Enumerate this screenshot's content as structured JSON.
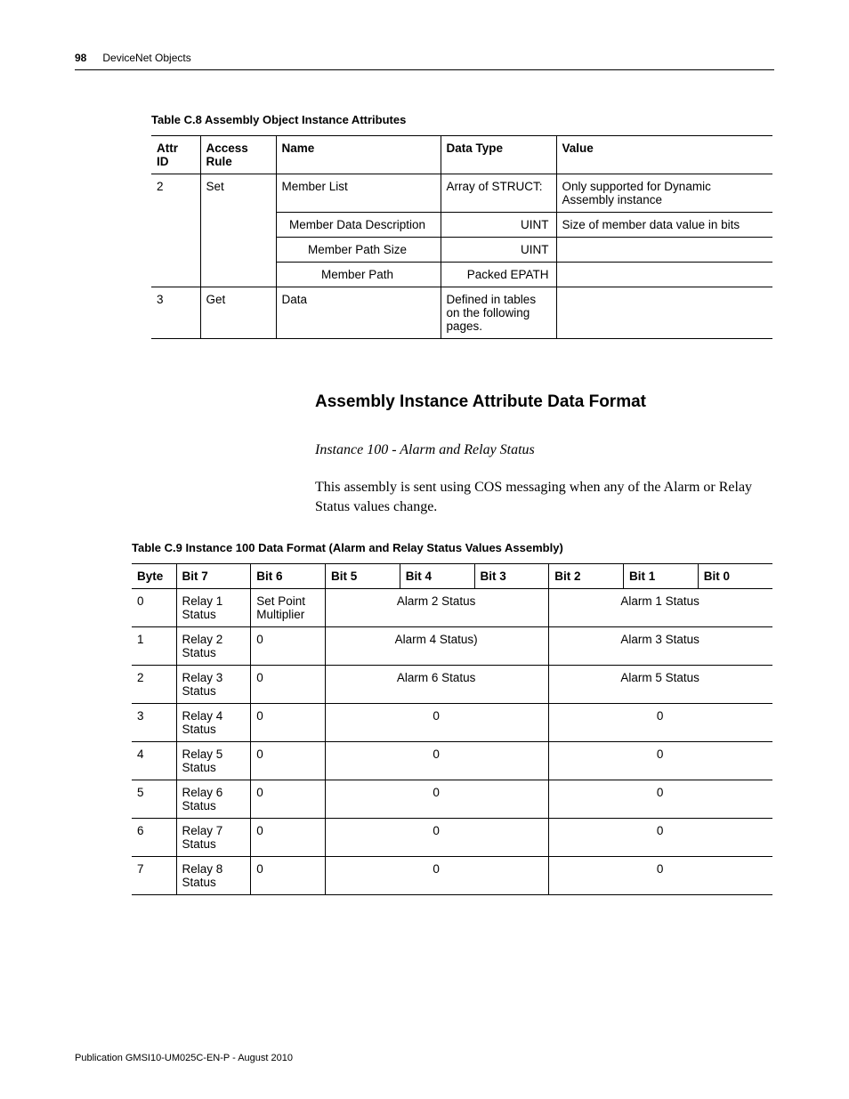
{
  "header": {
    "page_number": "98",
    "section_title": "DeviceNet Objects"
  },
  "table_c8": {
    "caption": "Table C.8 Assembly Object Instance Attributes",
    "columns": {
      "attr_id": "Attr ID",
      "access_rule": "Access\nRule",
      "name": "Name",
      "data_type": "Data Type",
      "value": "Value"
    },
    "rows": [
      {
        "attr_id": "2",
        "access": "Set",
        "name": "Member List",
        "dtype": "Array of STRUCT:",
        "value": "Only supported for Dynamic Assembly instance"
      },
      {
        "attr_id": "",
        "access": "",
        "name": "Member Data Description",
        "dtype": "UINT",
        "value": "Size of member data value in bits"
      },
      {
        "attr_id": "",
        "access": "",
        "name": "Member Path Size",
        "dtype": "UINT",
        "value": ""
      },
      {
        "attr_id": "",
        "access": "",
        "name": "Member Path",
        "dtype": "Packed EPATH",
        "value": ""
      },
      {
        "attr_id": "3",
        "access": "Get",
        "name": "Data",
        "dtype": "Defined in tables on the following pages.",
        "value": ""
      }
    ]
  },
  "section": {
    "heading": "Assembly Instance Attribute Data Format",
    "subheading": "Instance 100 - Alarm and Relay Status",
    "paragraph": "This assembly is sent using COS messaging when any of the Alarm or Relay Status values change."
  },
  "table_c9": {
    "caption": "Table C.9 Instance 100 Data Format (Alarm and Relay Status Values Assembly)",
    "columns": {
      "byte": "Byte",
      "bit7": "Bit 7",
      "bit6": "Bit 6",
      "bit5": "Bit 5",
      "bit4": "Bit 4",
      "bit3": "Bit 3",
      "bit2": "Bit 2",
      "bit1": "Bit 1",
      "bit0": "Bit 0"
    },
    "rows": [
      {
        "byte": "0",
        "b7": "Relay 1 Status",
        "b6": "Set Point Multiplier",
        "mid": "Alarm 2 Status",
        "low": "Alarm 1 Status"
      },
      {
        "byte": "1",
        "b7": "Relay 2 Status",
        "b6": "0",
        "mid": "Alarm 4 Status)",
        "low": "Alarm 3 Status"
      },
      {
        "byte": "2",
        "b7": "Relay 3 Status",
        "b6": "0",
        "mid": "Alarm 6 Status",
        "low": "Alarm 5 Status"
      },
      {
        "byte": "3",
        "b7": "Relay 4 Status",
        "b6": "0",
        "mid": "0",
        "low": "0"
      },
      {
        "byte": "4",
        "b7": "Relay 5 Status",
        "b6": "0",
        "mid": "0",
        "low": "0"
      },
      {
        "byte": "5",
        "b7": "Relay 6 Status",
        "b6": "0",
        "mid": "0",
        "low": "0"
      },
      {
        "byte": "6",
        "b7": "Relay 7 Status",
        "b6": "0",
        "mid": "0",
        "low": "0"
      },
      {
        "byte": "7",
        "b7": "Relay 8 Status",
        "b6": "0",
        "mid": "0",
        "low": "0"
      }
    ]
  },
  "footer": {
    "pub": "Publication GMSI10-UM025C-EN-P - August 2010"
  }
}
